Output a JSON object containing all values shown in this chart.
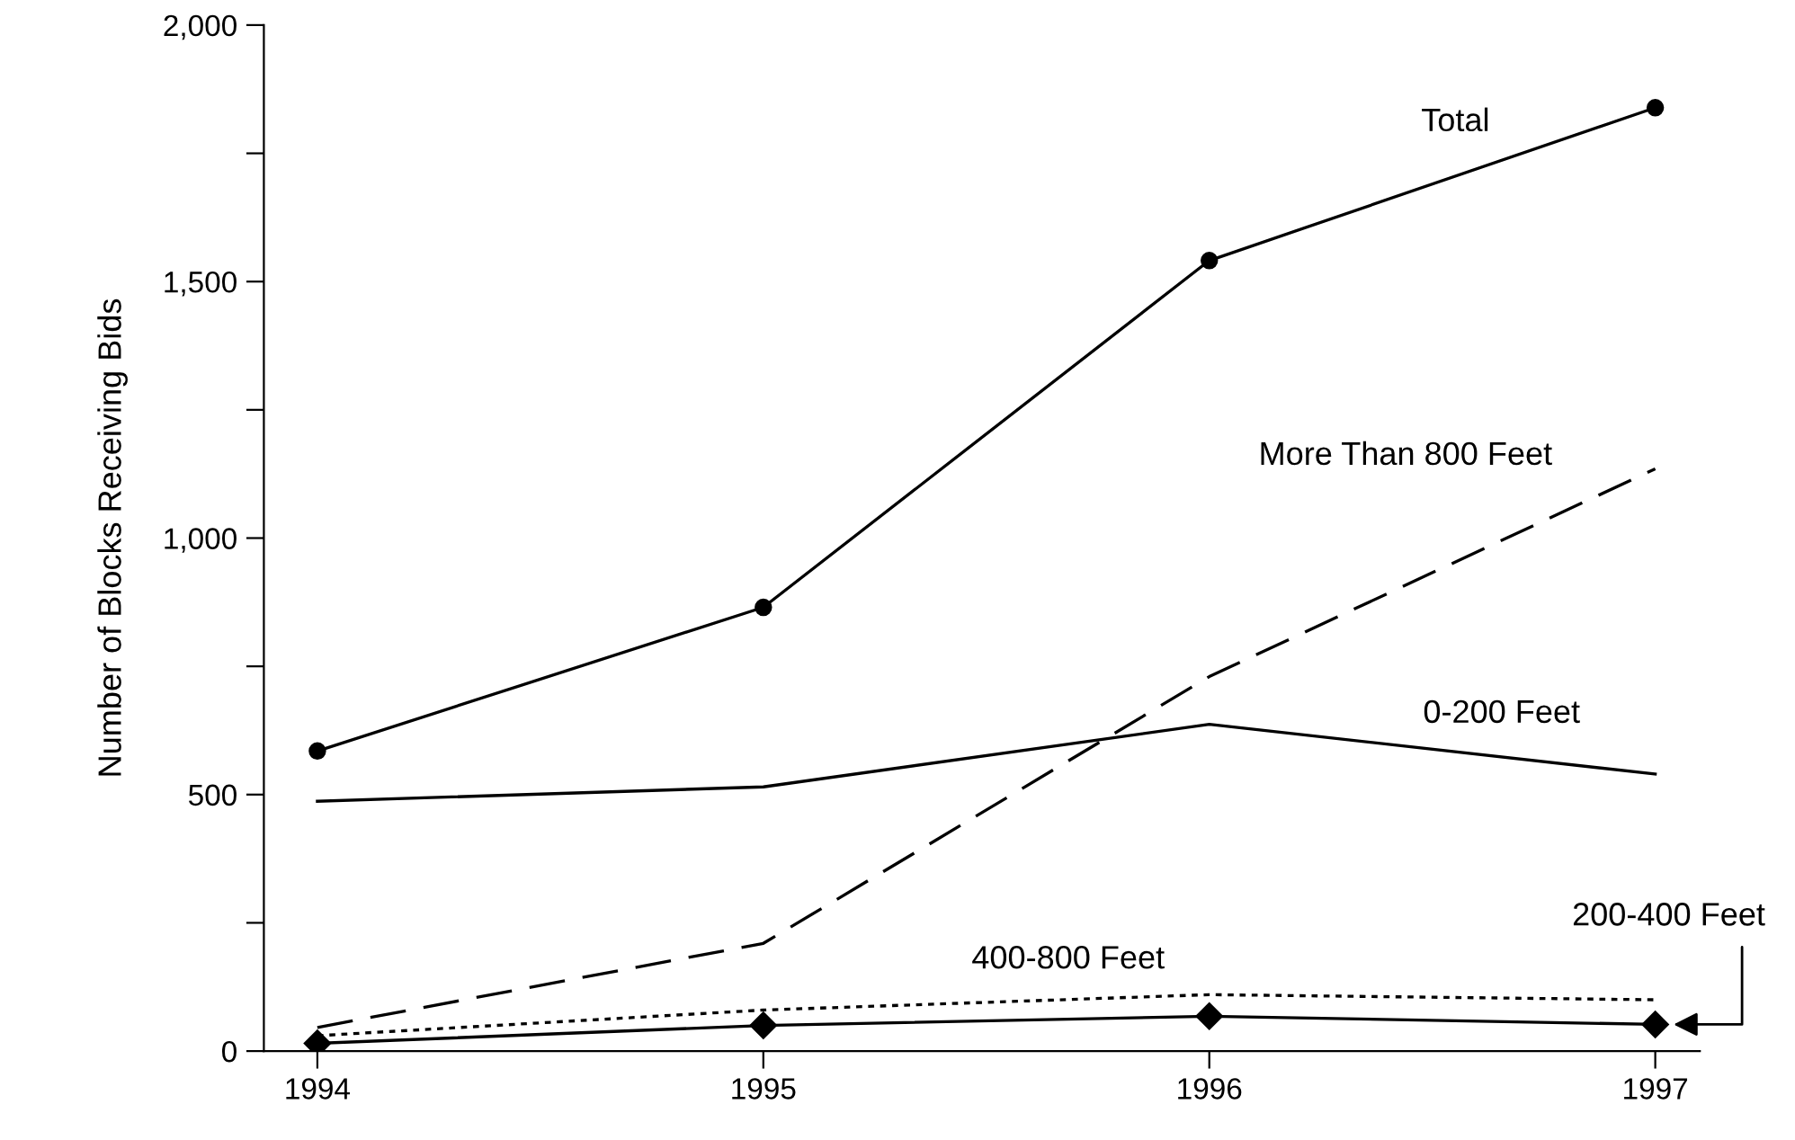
{
  "chart_data": {
    "type": "line",
    "ylabel": "Number of Blocks Receiving Bids",
    "x": [
      1994,
      1995,
      1996,
      1997
    ],
    "xlim": [
      1993.88,
      1997.1
    ],
    "xticks": [
      1994,
      1995,
      1996,
      1997
    ],
    "ylim": [
      0,
      2000
    ],
    "yticks": [
      {
        "value": 0,
        "label": "0"
      },
      {
        "value": 250,
        "label": null
      },
      {
        "value": 500,
        "label": "500"
      },
      {
        "value": 750,
        "label": null
      },
      {
        "value": 1000,
        "label": "1,000"
      },
      {
        "value": 1250,
        "label": null
      },
      {
        "value": 1500,
        "label": "1,500"
      },
      {
        "value": 1750,
        "label": null
      },
      {
        "value": 2000,
        "label": "2,000"
      }
    ],
    "grid": false,
    "legend": false,
    "series": [
      {
        "name": "Total",
        "color": "#000000",
        "values": [
          585,
          865,
          1541,
          1839
        ],
        "marker": "circle",
        "line_style": "solid"
      },
      {
        "name": "More Than 800 Feet",
        "color": "#000000",
        "values": [
          46,
          210,
          730,
          1135
        ],
        "marker": "none",
        "line_style": "dashed"
      },
      {
        "name": "0-200 Feet",
        "color": "#000000",
        "values": [
          487,
          515,
          637,
          540
        ],
        "marker": "none",
        "line_style": "solid"
      },
      {
        "name": "400-800 Feet",
        "color": "#000000",
        "values": [
          30,
          80,
          110,
          100
        ],
        "marker": "none",
        "line_style": "dotted"
      },
      {
        "name": "200-400 Feet",
        "color": "#000000",
        "values": [
          15,
          50,
          68,
          52
        ],
        "marker": "diamond",
        "line_style": "solid"
      }
    ]
  }
}
